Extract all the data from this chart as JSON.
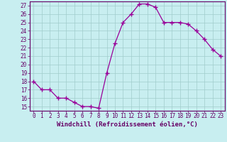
{
  "x": [
    0,
    1,
    2,
    3,
    4,
    5,
    6,
    7,
    8,
    9,
    10,
    11,
    12,
    13,
    14,
    15,
    16,
    17,
    18,
    19,
    20,
    21,
    22,
    23
  ],
  "y": [
    18,
    17,
    17,
    16,
    16,
    15.5,
    15,
    15,
    14.8,
    19,
    22.5,
    25,
    26,
    27.2,
    27.2,
    26.8,
    25,
    25,
    25,
    24.8,
    24,
    23,
    21.8,
    21
  ],
  "line_color": "#990099",
  "marker": "+",
  "marker_size": 4,
  "linewidth": 0.9,
  "xlabel": "Windchill (Refroidissement éolien,°C)",
  "xlabel_fontsize": 6.5,
  "bg_color": "#c8eef0",
  "grid_color": "#a0cccc",
  "ylim": [
    14.5,
    27.5
  ],
  "yticks": [
    15,
    16,
    17,
    18,
    19,
    20,
    21,
    22,
    23,
    24,
    25,
    26,
    27
  ],
  "xticks": [
    0,
    1,
    2,
    3,
    4,
    5,
    6,
    7,
    8,
    9,
    10,
    11,
    12,
    13,
    14,
    15,
    16,
    17,
    18,
    19,
    20,
    21,
    22,
    23
  ],
  "tick_labelsize": 5.5,
  "spine_color": "#660066",
  "label_color": "#660066"
}
